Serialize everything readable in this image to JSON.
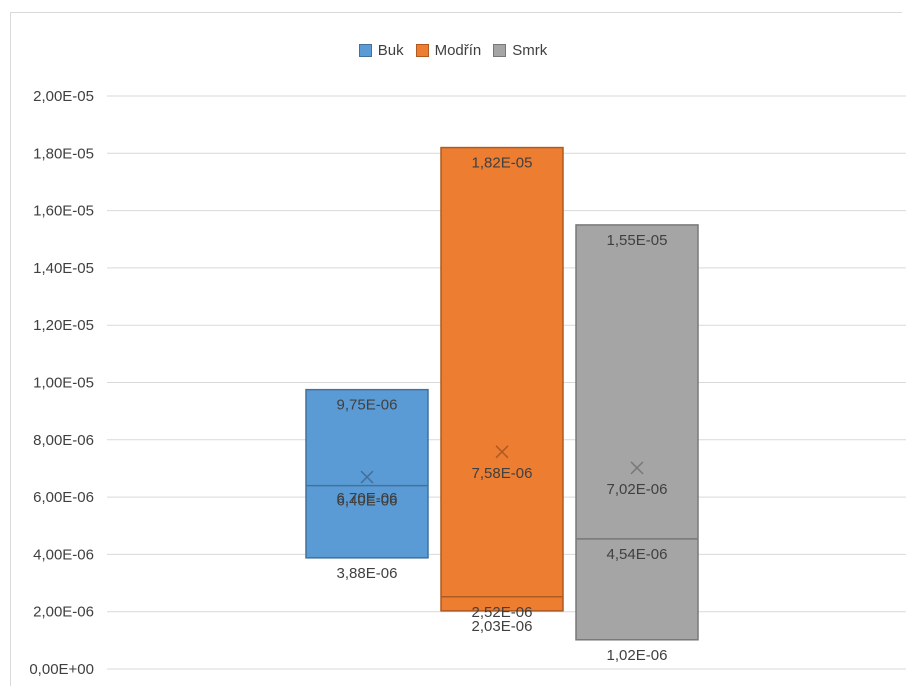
{
  "chart_data": {
    "type": "box",
    "ylim": [
      0,
      2e-05
    ],
    "y_ticks": [
      0,
      2e-06,
      4e-06,
      6e-06,
      8e-06,
      1e-05,
      1.2e-05,
      1.4e-05,
      1.6e-05,
      1.8e-05,
      2e-05
    ],
    "y_tick_labels": [
      "0,00E+00",
      "2,00E-06",
      "4,00E-06",
      "6,00E-06",
      "8,00E-06",
      "1,00E-05",
      "1,20E-05",
      "1,40E-05",
      "1,60E-05",
      "1,80E-05",
      "2,00E-05"
    ],
    "grid": true,
    "legend_position": "top-center",
    "series": [
      {
        "name": "Buk",
        "color": "#5b9bd5",
        "border": "#41719c",
        "q1": 3.88e-06,
        "median": 6.4e-06,
        "q3": 9.75e-06,
        "mean": 6.7e-06,
        "min": 3.88e-06,
        "max": 9.75e-06,
        "labels": {
          "q3": "9,75E-06",
          "median": "6,40E-06",
          "mean": "6,70E-06",
          "q1": "3,88E-06"
        }
      },
      {
        "name": "Modřín",
        "color": "#ed7d31",
        "border": "#ae5a21",
        "q1": 2.03e-06,
        "median": 2.52e-06,
        "q3": 1.82e-05,
        "mean": 7.58e-06,
        "min": 2.03e-06,
        "max": 1.82e-05,
        "labels": {
          "q3": "1,82E-05",
          "median": "2,52E-06",
          "mean": "7,58E-06",
          "q1": "2,03E-06"
        }
      },
      {
        "name": "Smrk",
        "color": "#a5a5a5",
        "border": "#787878",
        "q1": 1.02e-06,
        "median": 4.54e-06,
        "q3": 1.55e-05,
        "mean": 7.02e-06,
        "min": 1.02e-06,
        "max": 1.55e-05,
        "labels": {
          "q3": "1,55E-05",
          "median": "4,54E-06",
          "mean": "7,02E-06",
          "q1": "1,02E-06"
        }
      }
    ]
  }
}
